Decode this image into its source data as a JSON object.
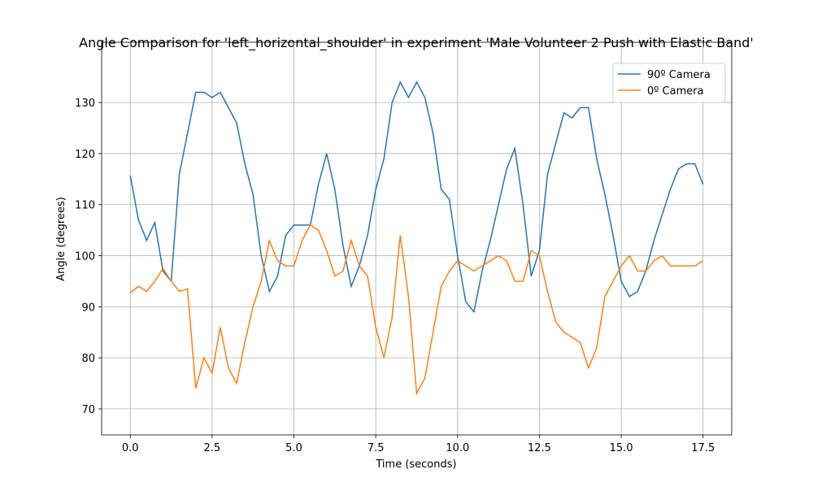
{
  "chart_data": {
    "type": "line",
    "title": "Angle Comparison for 'left_horizontal_shoulder' in experiment 'Male Volunteer 2 Push with Elastic Band'",
    "x_label": "Time (seconds)",
    "y_label": "Angle (degrees)",
    "x": [
      0,
      0.25,
      0.5,
      0.75,
      1,
      1.25,
      1.5,
      1.75,
      2,
      2.25,
      2.5,
      2.75,
      3,
      3.25,
      3.5,
      3.75,
      4,
      4.25,
      4.5,
      4.75,
      5,
      5.25,
      5.5,
      5.75,
      6,
      6.25,
      6.5,
      6.75,
      7,
      7.25,
      7.5,
      7.75,
      8,
      8.25,
      8.5,
      8.75,
      9,
      9.25,
      9.5,
      9.75,
      10,
      10.25,
      10.5,
      10.75,
      11,
      11.25,
      11.5,
      11.75,
      12,
      12.25,
      12.5,
      12.75,
      13,
      13.25,
      13.5,
      13.75,
      14,
      14.25,
      14.5,
      14.75,
      15,
      15.25,
      15.5,
      15.75,
      16,
      16.25,
      16.5,
      16.75,
      17,
      17.25,
      17.5
    ],
    "series": [
      {
        "name": "90º Camera",
        "color": "#1f77b4",
        "values": [
          115.7,
          107,
          103,
          106.5,
          97,
          95,
          116,
          124,
          132,
          132,
          131,
          132,
          129,
          126,
          118,
          112,
          100,
          93,
          96,
          104,
          106,
          106,
          106,
          114,
          120,
          113,
          102,
          94,
          98,
          104,
          113,
          119,
          130,
          134,
          131,
          134,
          131,
          124,
          113,
          111,
          100,
          91,
          89,
          97,
          103,
          110,
          117,
          121,
          110,
          96,
          101,
          116,
          122,
          128,
          127,
          129,
          129,
          119,
          112,
          104,
          95,
          92,
          93,
          97,
          103,
          108,
          113,
          117,
          118,
          118,
          114
        ]
      },
      {
        "name": "0º Camera",
        "color": "#ff7f0e",
        "values": [
          92.7,
          94,
          93,
          95,
          97.5,
          95,
          93,
          93.5,
          74,
          80,
          77,
          86,
          78,
          75,
          83,
          90,
          95,
          103,
          99,
          98,
          98,
          103,
          106,
          105,
          101,
          96,
          97,
          103,
          98,
          96,
          86,
          80,
          88,
          104,
          92,
          73,
          76,
          85,
          94,
          97,
          99,
          98,
          97,
          98,
          99,
          100,
          99,
          95,
          95,
          101,
          100,
          93,
          87,
          85,
          84,
          83,
          78,
          82,
          92,
          95,
          98,
          100,
          97,
          97,
          99,
          100,
          98,
          98,
          98,
          98,
          99
        ]
      }
    ],
    "xlim": [
      -0.875,
      18.375
    ],
    "ylim": [
      64.9,
      141.8
    ],
    "xticks": [
      {
        "value": 0,
        "label": "0.0"
      },
      2.5,
      {
        "value": 5,
        "label": "5.0"
      },
      7.5,
      {
        "value": 10,
        "label": "10.0"
      },
      12.5,
      {
        "value": 15,
        "label": "15.0"
      },
      17.5
    ],
    "yticks": [
      70,
      80,
      90,
      100,
      110,
      120,
      130
    ],
    "grid": true,
    "legend": "upper right"
  }
}
